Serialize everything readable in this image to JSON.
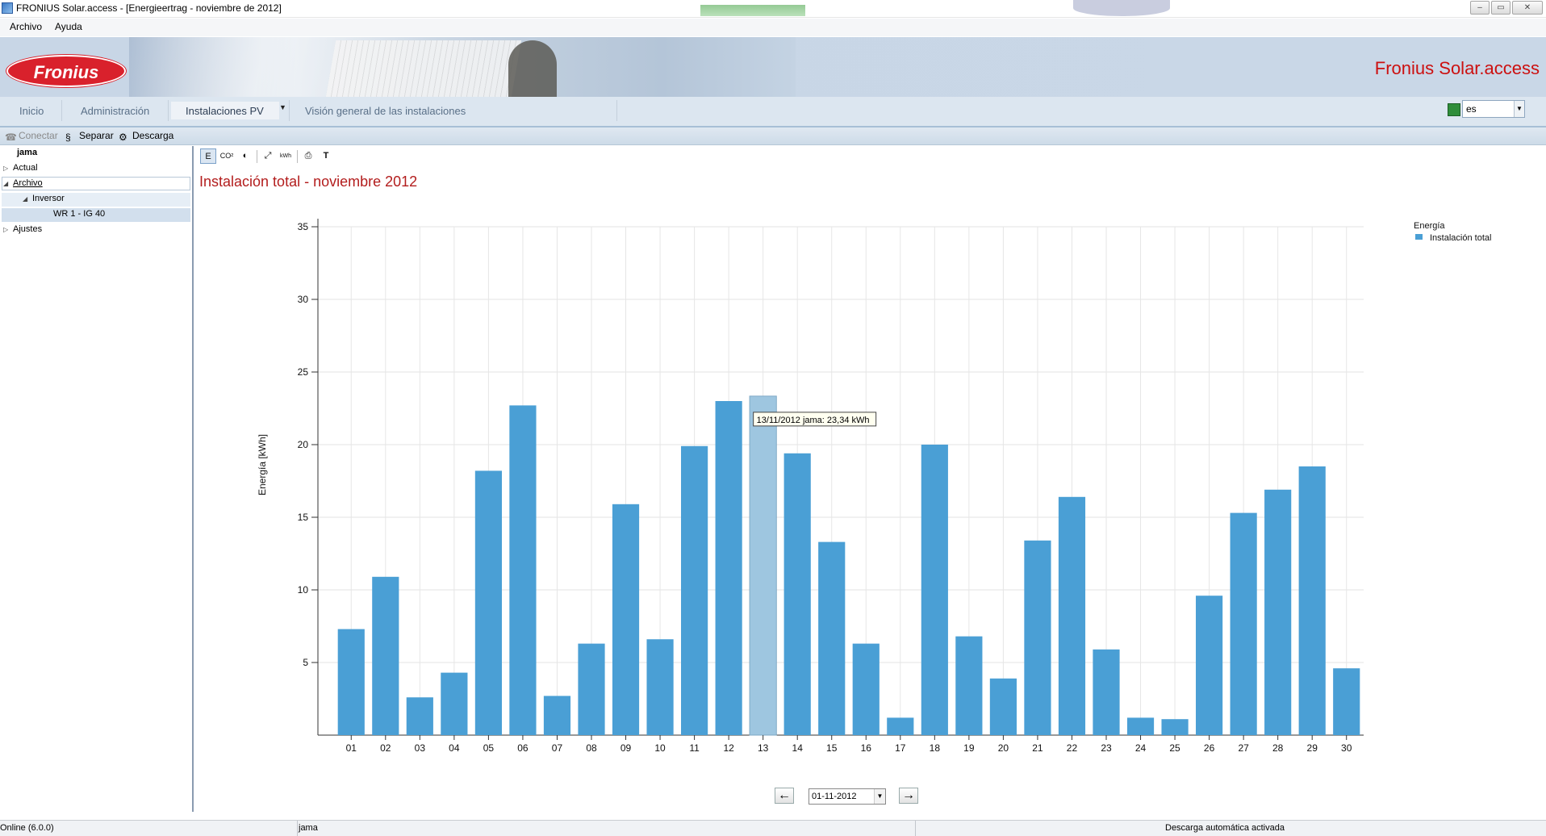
{
  "window": {
    "title": "FRONIUS Solar.access - [Energieertrag - noviembre de 2012]",
    "controls": {
      "minimize": "–",
      "maximize": "▭",
      "close": "✕"
    }
  },
  "menu": {
    "items": [
      "Archivo",
      "Ayuda"
    ]
  },
  "header": {
    "logo_text": "Fronius",
    "brand": "Fronius Solar.access"
  },
  "nav": {
    "tabs": [
      "Inicio",
      "Administración",
      "Instalaciones PV",
      "Visión general de las instalaciones"
    ],
    "active_tab": "Instalaciones PV",
    "language": "es"
  },
  "toolbar": {
    "connect": "Conectar",
    "disconnect": "Separar",
    "download": "Descarga"
  },
  "sidebar": {
    "root": "jama",
    "items": [
      "Actual",
      "Archivo",
      "Inversor",
      "WR 1 - IG 40",
      "Ajustes"
    ]
  },
  "chart_toolbar": {
    "energy_button": "E",
    "co2_button": "CO²",
    "text_button": "T",
    "kwh_button": "kWh"
  },
  "chart_data": {
    "type": "bar",
    "title": "Instalación total - noviembre 2012",
    "ylabel": "Energía [kWh]",
    "xlabel": "",
    "ylim": [
      0,
      35
    ],
    "yticks": [
      5,
      10,
      15,
      20,
      25,
      30,
      35
    ],
    "grid": true,
    "legend": {
      "title": "Energía",
      "placement": "top-right"
    },
    "categories": [
      "01",
      "02",
      "03",
      "04",
      "05",
      "06",
      "07",
      "08",
      "09",
      "10",
      "11",
      "12",
      "13",
      "14",
      "15",
      "16",
      "17",
      "18",
      "19",
      "20",
      "21",
      "22",
      "23",
      "24",
      "25",
      "26",
      "27",
      "28",
      "29",
      "30"
    ],
    "series": [
      {
        "name": "Instalación total",
        "color": "#4a9fd5",
        "values": [
          7.3,
          10.9,
          2.6,
          4.3,
          18.2,
          22.7,
          2.7,
          6.3,
          15.9,
          6.6,
          19.9,
          23.0,
          23.34,
          19.4,
          13.3,
          6.3,
          1.2,
          20.0,
          6.8,
          3.9,
          13.4,
          16.4,
          5.9,
          1.2,
          1.1,
          9.6,
          15.3,
          16.9,
          18.5,
          4.6
        ]
      }
    ],
    "highlight_index": 12,
    "tooltip": "13/11/2012 jama: 23,34 kWh"
  },
  "date_nav": {
    "prev": "←",
    "date": "01-11-2012",
    "next": "→"
  },
  "status": {
    "version": "Online (6.0.0)",
    "system": "jama",
    "auto_download": "Descarga automática activada"
  }
}
